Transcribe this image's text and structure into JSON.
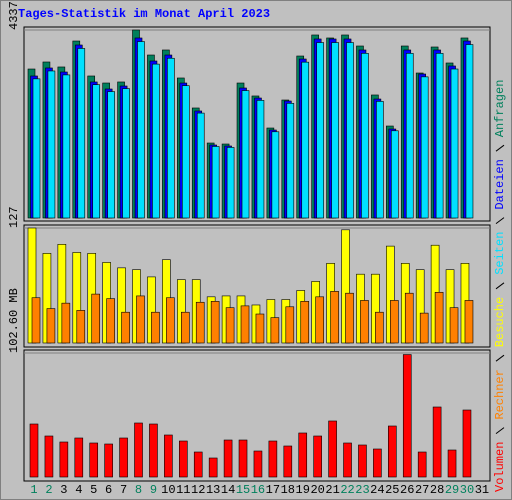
{
  "title": "Tages-Statistik im Monat April 2023",
  "chart_data": [
    {
      "type": "bar",
      "ylim": [
        0,
        4337
      ],
      "yticks": [
        4337
      ],
      "series": [
        {
          "name": "Anfragen",
          "color": "#00805c",
          "values": [
            3437,
            3599,
            3484,
            4083,
            3276,
            3114,
            3138,
            4337,
            3760,
            3876,
            3230,
            2538,
            1730,
            1707,
            3114,
            2815,
            2076,
            2722,
            3737,
            4222,
            4153,
            4222,
            3968,
            2838,
            2122,
            3968,
            3345,
            3945,
            3576,
            4153,
            null
          ]
        },
        {
          "name": "Dateien",
          "color": "#0000ff",
          "values": [
            3276,
            3461,
            3368,
            3991,
            3138,
            2976,
            3045,
            4153,
            3622,
            3760,
            3114,
            2469,
            1684,
            1661,
            2999,
            2768,
            2030,
            2699,
            3668,
            4130,
            4130,
            4130,
            3876,
            2745,
            2053,
            3876,
            3322,
            3876,
            3507,
            4083,
            null
          ]
        },
        {
          "name": "Seiten",
          "color": "#00e0ff",
          "values": [
            3210,
            3392,
            3301,
            3911,
            3075,
            2916,
            2984,
            4070,
            3550,
            3685,
            3052,
            2420,
            1650,
            1628,
            2939,
            2713,
            1989,
            2645,
            3595,
            4047,
            4047,
            4047,
            3798,
            2690,
            2012,
            3798,
            3256,
            3798,
            3437,
            4001,
            null
          ]
        }
      ]
    },
    {
      "type": "bar",
      "ylim": [
        0,
        127
      ],
      "yticks": [
        127
      ],
      "series": [
        {
          "name": "Besuche",
          "color": "#ffff00",
          "values": [
            127,
            99,
            109,
            100,
            99,
            89,
            83,
            81,
            73,
            92,
            70,
            70,
            51,
            52,
            52,
            42,
            48,
            48,
            58,
            68,
            88,
            125,
            76,
            76,
            107,
            88,
            81,
            108,
            81,
            88,
            null
          ]
        },
        {
          "name": "Rechner",
          "color": "#ff8000",
          "values": [
            50,
            38,
            44,
            36,
            54,
            49,
            34,
            52,
            34,
            50,
            34,
            45,
            46,
            39,
            41,
            32,
            28,
            40,
            46,
            51,
            57,
            55,
            47,
            34,
            47,
            55,
            33,
            56,
            39,
            47,
            null
          ]
        }
      ]
    },
    {
      "type": "bar",
      "ylim": [
        0,
        102.6
      ],
      "yticks": [
        {
          "value": 102.6,
          "label": "102.60 MB"
        }
      ],
      "categories": [
        "1",
        "2",
        "3",
        "4",
        "5",
        "6",
        "7",
        "8",
        "9",
        "10",
        "11",
        "12",
        "13",
        "14",
        "15",
        "16",
        "17",
        "18",
        "19",
        "20",
        "21",
        "22",
        "23",
        "24",
        "25",
        "26",
        "27",
        "28",
        "29",
        "30",
        "31"
      ],
      "category_colors": [
        "#00805c",
        "#00805c",
        "#000000",
        "#000000",
        "#000000",
        "#000000",
        "#000000",
        "#00805c",
        "#00805c",
        "#000000",
        "#000000",
        "#000000",
        "#000000",
        "#000000",
        "#00805c",
        "#00805c",
        "#000000",
        "#000000",
        "#000000",
        "#000000",
        "#000000",
        "#00805c",
        "#00805c",
        "#000000",
        "#000000",
        "#000000",
        "#000000",
        "#000000",
        "#00805c",
        "#00805c",
        "#000000"
      ],
      "series": [
        {
          "name": "Volumen",
          "color": "#ff0000",
          "values": [
            43.85,
            33.92,
            28.96,
            32.27,
            28.13,
            27.3,
            32.27,
            44.68,
            43.85,
            34.75,
            29.78,
            20.68,
            15.72,
            30.61,
            30.61,
            21.51,
            29.78,
            25.65,
            36.41,
            33.92,
            46.34,
            28.13,
            26.48,
            23.17,
            42.2,
            101.3,
            20.68,
            57.92,
            22.34,
            55.43,
            null
          ]
        }
      ]
    }
  ]
}
